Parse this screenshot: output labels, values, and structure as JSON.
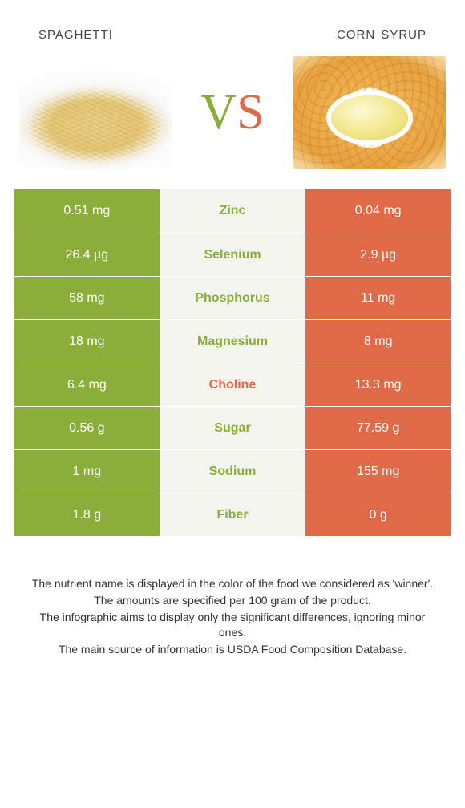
{
  "foods": {
    "left": {
      "name": "spaghetti"
    },
    "right": {
      "name": "corn syrup"
    }
  },
  "vs_text": {
    "v": "V",
    "s": "S"
  },
  "colors": {
    "left_bg": "#8bae3a",
    "mid_bg": "#f4f4ee",
    "right_bg": "#e06a47",
    "left_text": "#8bae3a",
    "right_text": "#e06a47"
  },
  "table": {
    "rows": [
      {
        "left": "0.51 mg",
        "label": "Zinc",
        "right": "0.04 mg",
        "winner": "left"
      },
      {
        "left": "26.4 µg",
        "label": "Selenium",
        "right": "2.9 µg",
        "winner": "left"
      },
      {
        "left": "58 mg",
        "label": "Phosphorus",
        "right": "11 mg",
        "winner": "left"
      },
      {
        "left": "18 mg",
        "label": "Magnesium",
        "right": "8 mg",
        "winner": "left"
      },
      {
        "left": "6.4 mg",
        "label": "Choline",
        "right": "13.3 mg",
        "winner": "right"
      },
      {
        "left": "0.56 g",
        "label": "Sugar",
        "right": "77.59 g",
        "winner": "left"
      },
      {
        "left": "1 mg",
        "label": "Sodium",
        "right": "155 mg",
        "winner": "left"
      },
      {
        "left": "1.8 g",
        "label": "Fiber",
        "right": "0 g",
        "winner": "left"
      }
    ]
  },
  "notes": [
    "The nutrient name is displayed in the color of the food we considered as 'winner'.",
    "The amounts are specified per 100 gram of the product.",
    "The infographic aims to display only the significant differences, ignoring minor ones.",
    "The main source of information is USDA Food Composition Database."
  ]
}
